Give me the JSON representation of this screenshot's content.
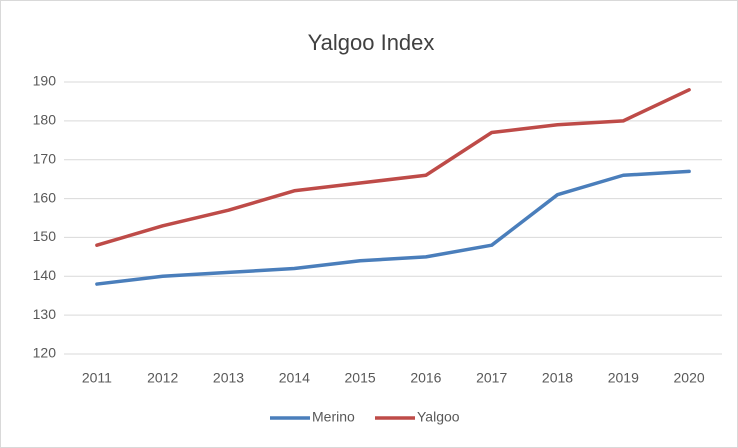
{
  "chart_data": {
    "type": "line",
    "title": "Yalgoo Index",
    "categories": [
      "2011",
      "2012",
      "2013",
      "2014",
      "2015",
      "2016",
      "2017",
      "2018",
      "2019",
      "2020"
    ],
    "series": [
      {
        "name": "Merino",
        "color": "#4a7ebb",
        "values": [
          138,
          140,
          141,
          142,
          144,
          145,
          148,
          161,
          166,
          167
        ]
      },
      {
        "name": "Yalgoo",
        "color": "#be4b48",
        "values": [
          148,
          153,
          157,
          162,
          164,
          166,
          177,
          179,
          180,
          188
        ]
      }
    ],
    "ylim": [
      120,
      190
    ],
    "yticks": [
      120,
      130,
      140,
      150,
      160,
      170,
      180,
      190
    ],
    "grid": true,
    "legend": "bottom"
  }
}
